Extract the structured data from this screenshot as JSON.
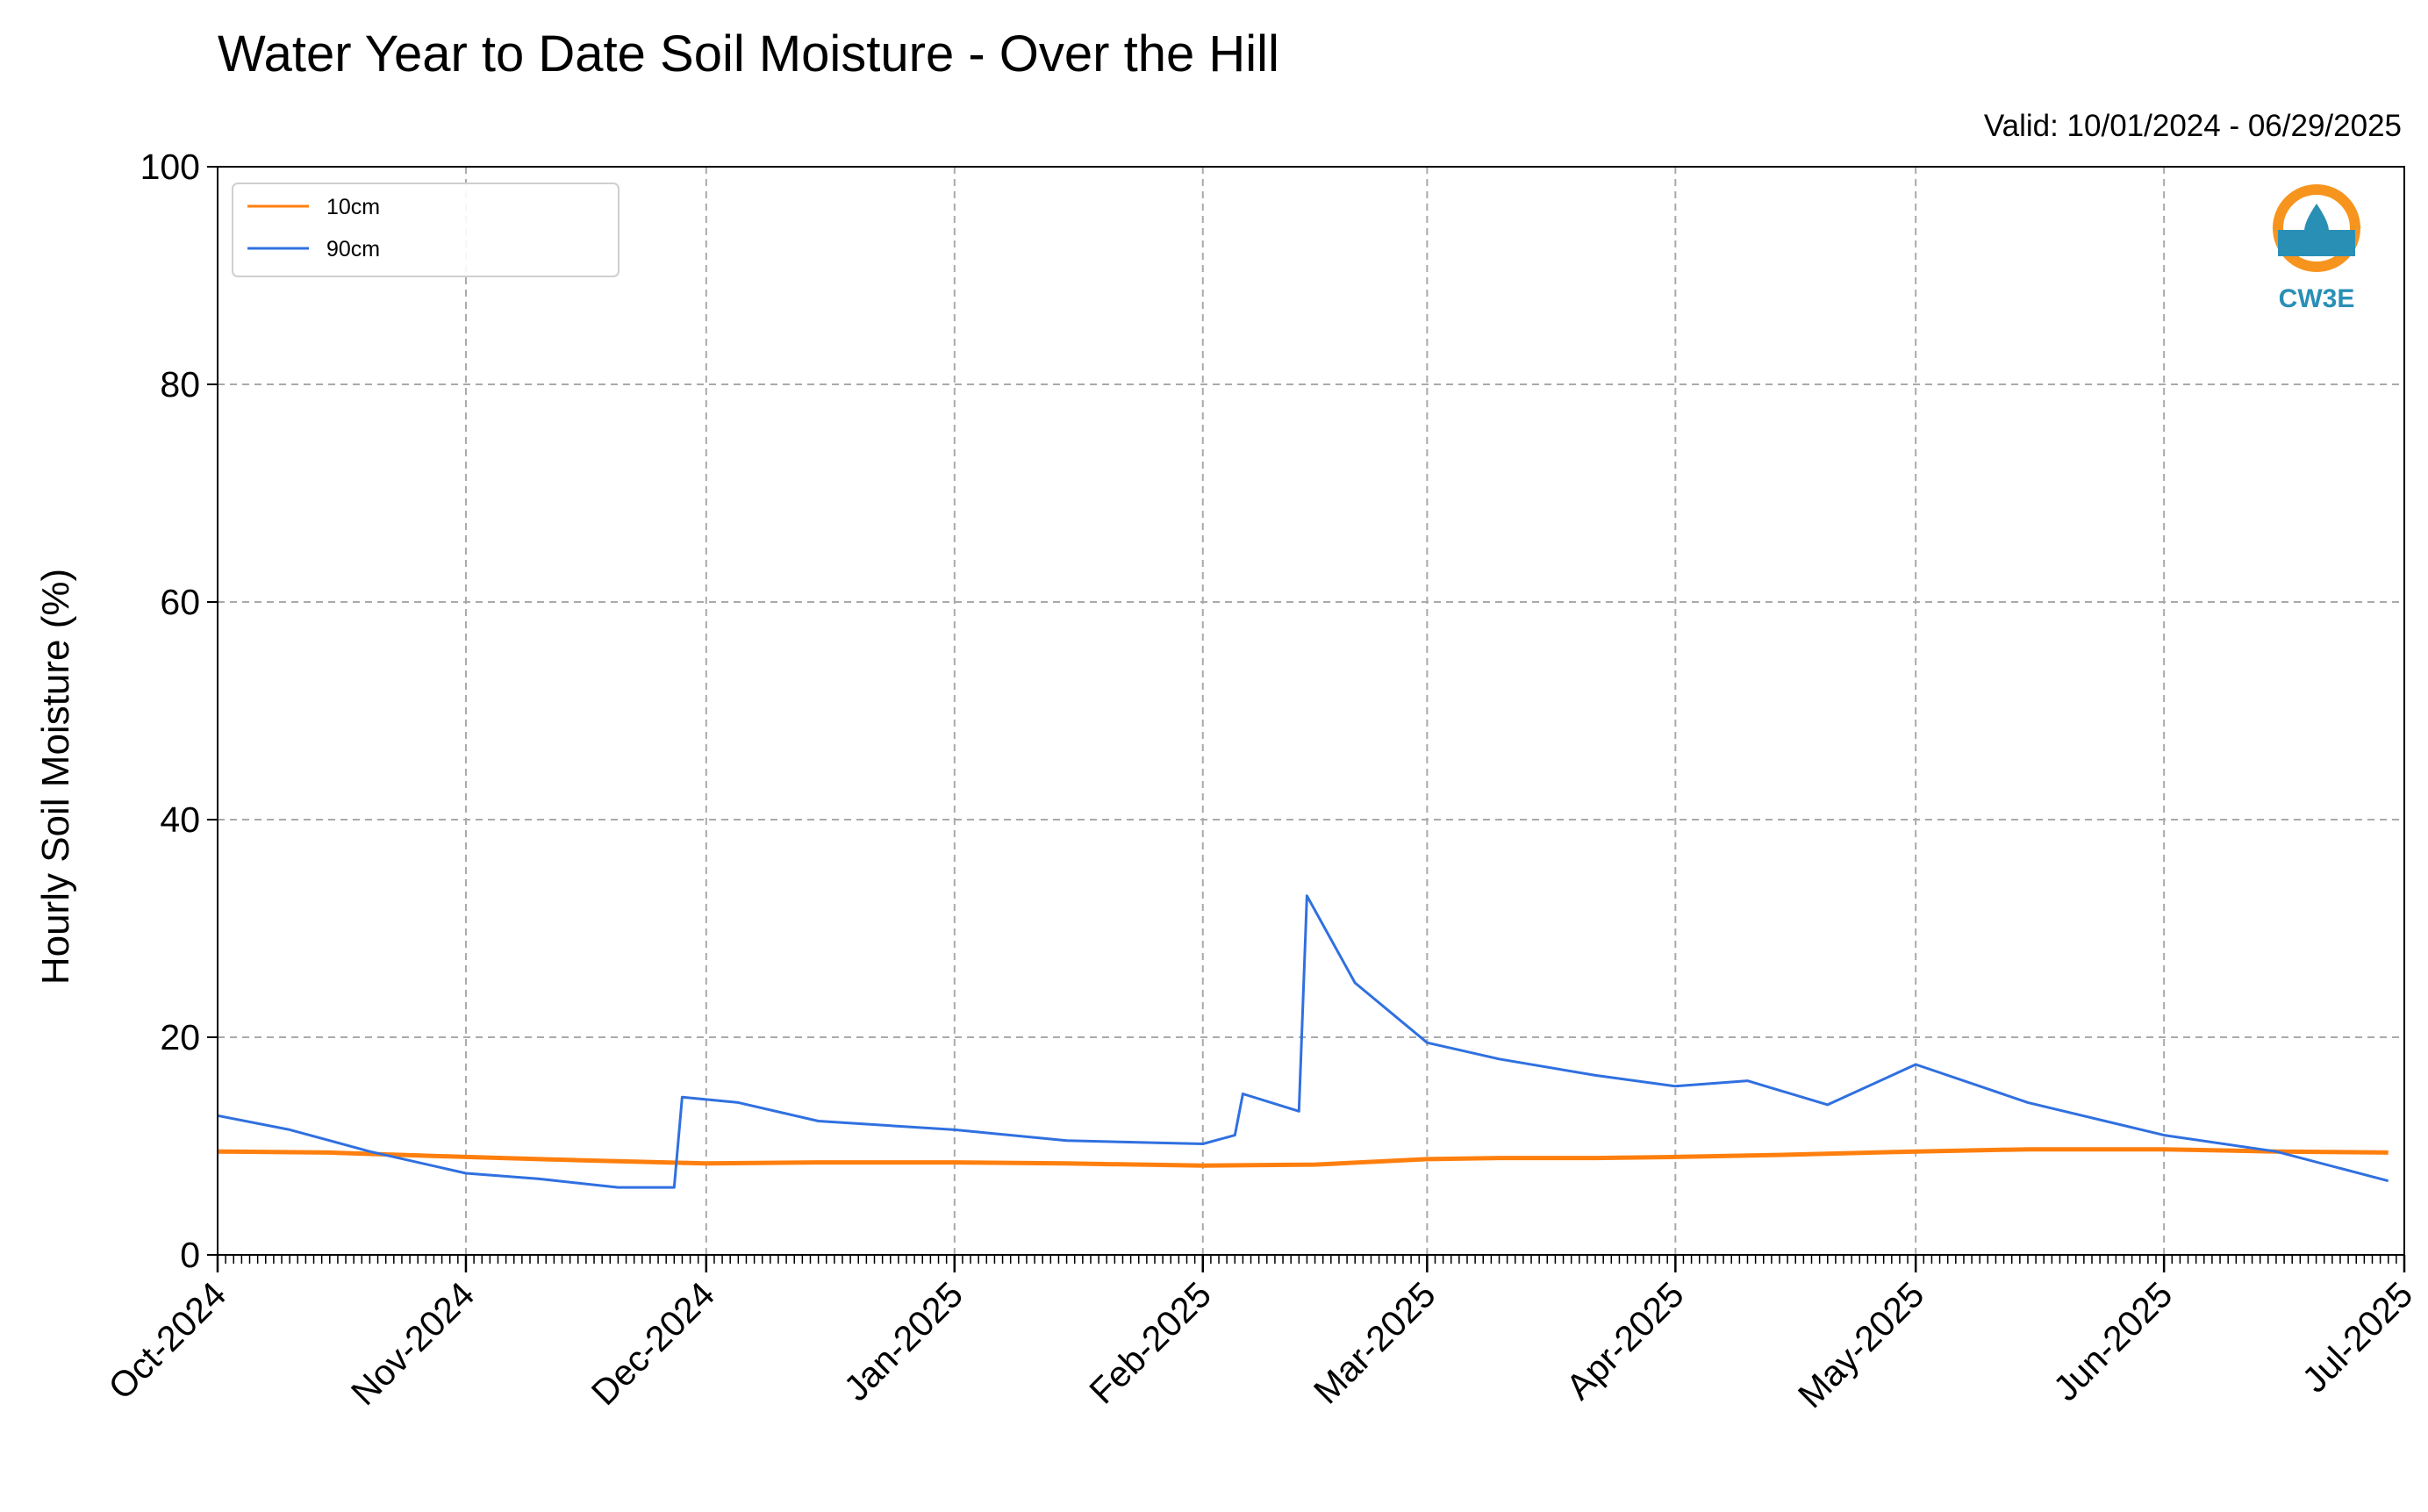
{
  "chart_data": {
    "type": "line",
    "title": "Water Year to Date Soil Moisture - Over the Hill",
    "subtitle": "Valid: 10/01/2024 - 06/29/2025",
    "xlabel": "",
    "ylabel": "Hourly Soil Moisture (%)",
    "ylim": [
      0,
      100
    ],
    "yticks": [
      0,
      20,
      40,
      60,
      80,
      100
    ],
    "xlim": [
      "2024-10-01",
      "2025-07-01"
    ],
    "xticks": [
      {
        "date": "2024-10-01",
        "label": "Oct-2024"
      },
      {
        "date": "2024-11-01",
        "label": "Nov-2024"
      },
      {
        "date": "2024-12-01",
        "label": "Dec-2024"
      },
      {
        "date": "2025-01-01",
        "label": "Jan-2025"
      },
      {
        "date": "2025-02-01",
        "label": "Feb-2025"
      },
      {
        "date": "2025-03-01",
        "label": "Mar-2025"
      },
      {
        "date": "2025-04-01",
        "label": "Apr-2025"
      },
      {
        "date": "2025-05-01",
        "label": "May-2025"
      },
      {
        "date": "2025-06-01",
        "label": "Jun-2025"
      },
      {
        "date": "2025-07-01",
        "label": "Jul-2025"
      }
    ],
    "grid": true,
    "legend_position": "top-left",
    "series": [
      {
        "name": "10cm",
        "color": "#ff7f0e",
        "points": [
          [
            "2024-10-01",
            9.5
          ],
          [
            "2024-10-15",
            9.4
          ],
          [
            "2024-11-01",
            9.0
          ],
          [
            "2024-11-15",
            8.7
          ],
          [
            "2024-12-01",
            8.4
          ],
          [
            "2024-12-15",
            8.5
          ],
          [
            "2025-01-01",
            8.5
          ],
          [
            "2025-01-15",
            8.4
          ],
          [
            "2025-02-01",
            8.2
          ],
          [
            "2025-02-15",
            8.3
          ],
          [
            "2025-03-01",
            8.8
          ],
          [
            "2025-03-10",
            8.9
          ],
          [
            "2025-03-22",
            8.9
          ],
          [
            "2025-04-01",
            9.0
          ],
          [
            "2025-04-15",
            9.2
          ],
          [
            "2025-05-01",
            9.5
          ],
          [
            "2025-05-15",
            9.7
          ],
          [
            "2025-06-01",
            9.7
          ],
          [
            "2025-06-15",
            9.5
          ],
          [
            "2025-06-29",
            9.4
          ]
        ]
      },
      {
        "name": "90cm",
        "color": "#3070e0",
        "points": [
          [
            "2024-10-01",
            12.8
          ],
          [
            "2024-10-10",
            11.5
          ],
          [
            "2024-10-20",
            9.5
          ],
          [
            "2024-11-01",
            7.5
          ],
          [
            "2024-11-10",
            7.0
          ],
          [
            "2024-11-20",
            6.2
          ],
          [
            "2024-11-27",
            6.2
          ],
          [
            "2024-11-28",
            14.5
          ],
          [
            "2024-12-05",
            14.0
          ],
          [
            "2024-12-15",
            12.3
          ],
          [
            "2025-01-01",
            11.5
          ],
          [
            "2025-01-15",
            10.5
          ],
          [
            "2025-02-01",
            10.2
          ],
          [
            "2025-02-05",
            11.0
          ],
          [
            "2025-02-06",
            14.8
          ],
          [
            "2025-02-13",
            13.2
          ],
          [
            "2025-02-14",
            33.0
          ],
          [
            "2025-02-20",
            25.0
          ],
          [
            "2025-03-01",
            19.5
          ],
          [
            "2025-03-10",
            18.0
          ],
          [
            "2025-03-22",
            16.5
          ],
          [
            "2025-04-01",
            15.5
          ],
          [
            "2025-04-10",
            16.0
          ],
          [
            "2025-04-20",
            13.8
          ],
          [
            "2025-05-01",
            17.5
          ],
          [
            "2025-05-15",
            14.0
          ],
          [
            "2025-06-01",
            11.0
          ],
          [
            "2025-06-15",
            9.5
          ],
          [
            "2025-06-29",
            6.8
          ]
        ]
      }
    ]
  },
  "logo": {
    "text": "CW3E",
    "color": "#2a8fb5",
    "accent": "#f7941d",
    "icon": "water-drop-icon"
  }
}
